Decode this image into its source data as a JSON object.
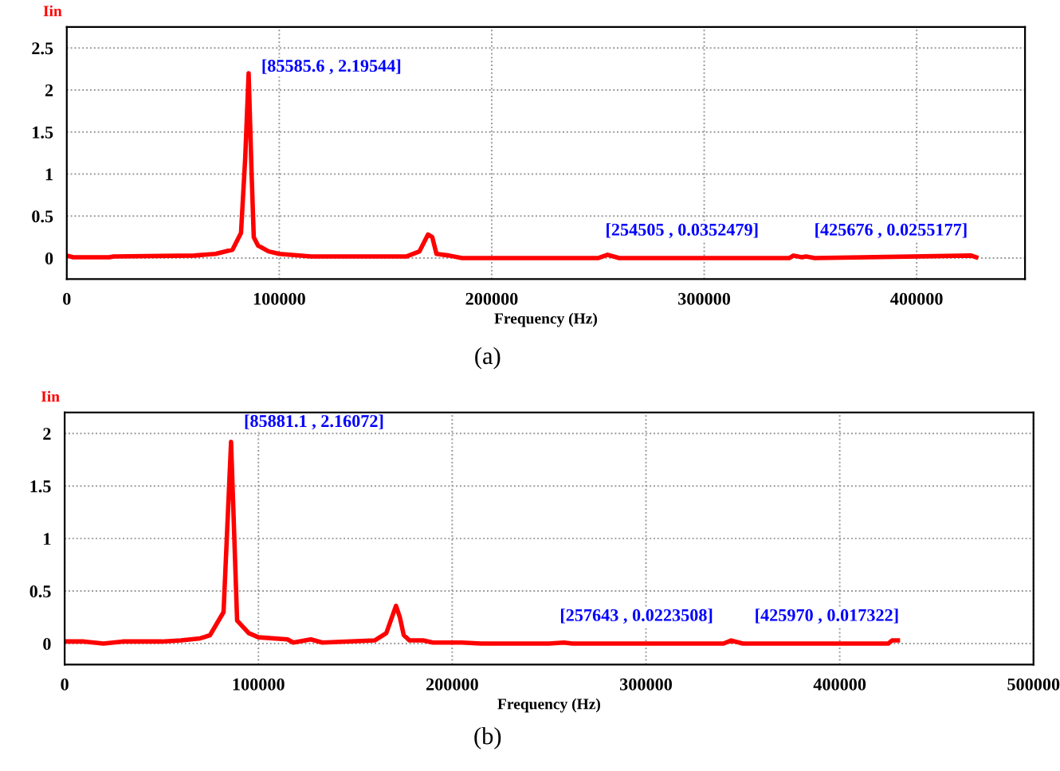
{
  "chart_data": [
    {
      "type": "line",
      "ylabel": "Iin",
      "xlabel": "Frequency (Hz)",
      "xlim": [
        0,
        451000
      ],
      "ylim": [
        -0.25,
        2.75
      ],
      "xticks": [
        0,
        100000,
        200000,
        300000,
        400000
      ],
      "yticks": [
        0,
        0.5,
        1,
        1.5,
        2,
        2.5
      ],
      "grid": true,
      "series": [
        {
          "color": "#ff0000",
          "x": [
            0,
            3000,
            20000,
            22000,
            60000,
            70000,
            78000,
            82000,
            84000,
            85586,
            87000,
            88000,
            90000,
            95000,
            100000,
            115000,
            160000,
            166000,
            170000,
            172000,
            174000,
            180000,
            186000,
            250000,
            254505,
            260000,
            340000,
            342000,
            346000,
            348000,
            352000,
            425676,
            428000
          ],
          "values": [
            0.03,
            0.01,
            0.01,
            0.02,
            0.03,
            0.05,
            0.1,
            0.3,
            1.2,
            2.2,
            1.0,
            0.25,
            0.15,
            0.08,
            0.05,
            0.02,
            0.02,
            0.08,
            0.28,
            0.25,
            0.05,
            0.03,
            0.0,
            0.0,
            0.04,
            0.0,
            0.0,
            0.03,
            0.01,
            0.02,
            0.0,
            0.03,
            0.01
          ]
        }
      ],
      "annotations": [
        "[85585.6 , 2.19544]",
        "[254505 , 0.0352479]",
        "[425676 , 0.0255177]",
        "(a)"
      ]
    },
    {
      "type": "line",
      "ylabel": "Iin",
      "xlabel": "Frequency (Hz)",
      "xlim": [
        0,
        500000
      ],
      "ylim": [
        -0.2,
        2.2
      ],
      "xticks": [
        0,
        100000,
        200000,
        300000,
        400000,
        500000
      ],
      "yticks": [
        0,
        0.5,
        1,
        1.5,
        2
      ],
      "grid": true,
      "series": [
        {
          "color": "#ff0000",
          "x": [
            0,
            10000,
            20000,
            30000,
            50000,
            60000,
            70000,
            75000,
            82000,
            85881,
            89000,
            95000,
            100000,
            115000,
            118000,
            127000,
            133000,
            160000,
            166000,
            171000,
            173000,
            175000,
            178000,
            185000,
            190000,
            205000,
            215000,
            250000,
            257643,
            262000,
            340000,
            344000,
            350000,
            425000,
            427000,
            430000
          ],
          "values": [
            0.02,
            0.02,
            0.0,
            0.02,
            0.02,
            0.03,
            0.05,
            0.08,
            0.3,
            1.92,
            0.22,
            0.1,
            0.06,
            0.04,
            0.01,
            0.04,
            0.01,
            0.03,
            0.1,
            0.36,
            0.25,
            0.08,
            0.03,
            0.03,
            0.01,
            0.01,
            0.0,
            0.0,
            0.01,
            0.0,
            0.0,
            0.03,
            0.0,
            0.0,
            0.03,
            0.03
          ]
        }
      ],
      "annotations": [
        "[85881.1 , 2.16072]",
        "[257643 , 0.0223508]",
        "[425970 , 0.017322]",
        "(b)"
      ]
    }
  ]
}
